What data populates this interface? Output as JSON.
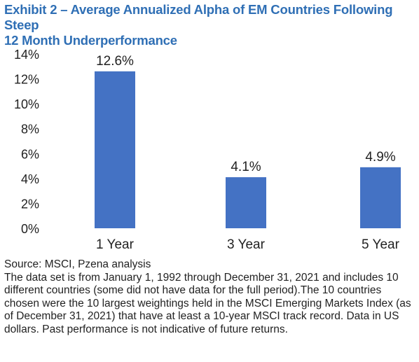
{
  "header": {
    "title_line1": "Exhibit 2 – Average Annualized Alpha of EM Countries Following Steep",
    "title_line2": "12 Month Underperformance"
  },
  "chart_data": {
    "type": "bar",
    "title": "Exhibit 2 – Average Annualized Alpha of EM Countries Following Steep 12 Month Underperformance",
    "categories": [
      "1 Year",
      "3 Year",
      "5 Year"
    ],
    "values": [
      12.6,
      4.1,
      4.9
    ],
    "data_labels": [
      "12.6%",
      "4.1%",
      "4.9%"
    ],
    "y_ticks": [
      "0%",
      "2%",
      "4%",
      "6%",
      "8%",
      "10%",
      "12%",
      "14%"
    ],
    "y_tick_values": [
      0,
      2,
      4,
      6,
      8,
      10,
      12,
      14
    ],
    "ylim": [
      0,
      14
    ],
    "xlabel": "",
    "ylabel": "",
    "grid": false,
    "bar_color": "#4472c4"
  },
  "notes": {
    "source": "Source: MSCI, Pzena analysis",
    "body": "The data set is from January 1, 1992 through December 31, 2021 and includes 10 different countries (some did not have data for the full period).The 10 countries chosen were the 10 largest weightings held in the MSCI Emerging Markets Index (as of December 31, 2021) that have at least a 10-year MSCI track record. Data in US dollars. Past performance is not indicative of future returns."
  }
}
